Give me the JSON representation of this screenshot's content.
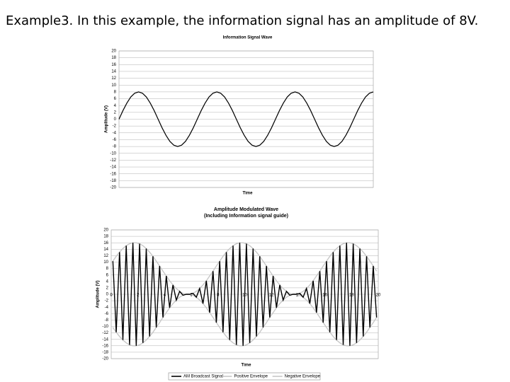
{
  "title": "Example3. In this example, the information signal has an amplitude of 8V.",
  "chart_data": [
    {
      "type": "line",
      "title": "Information Signal Wave",
      "x_label": "Time",
      "y_label": "Amplitude (V)",
      "color": "#000000",
      "grid": true,
      "values": [
        0,
        2.5,
        4.7,
        6.5,
        7.6,
        8,
        7.6,
        6.5,
        4.7,
        2.5,
        0,
        -2.5,
        -4.7,
        -6.5,
        -7.6,
        -8,
        -7.6,
        -6.5,
        -4.7,
        -2.5,
        0,
        2.5,
        4.7,
        6.5,
        7.6,
        8,
        7.6,
        6.5,
        4.7,
        2.5,
        0,
        -2.5,
        -4.7,
        -6.5,
        -7.6,
        -8,
        -7.6,
        -6.5,
        -4.7,
        -2.5,
        0,
        2.5,
        4.7,
        6.5,
        7.6,
        8,
        7.6,
        6.5,
        4.7,
        2.5,
        0,
        -2.5,
        -4.7,
        -6.5,
        -7.6,
        -8,
        -7.6,
        -6.5,
        -4.7,
        -2.5,
        0,
        2.5,
        4.7,
        6.5,
        7.6,
        8
      ],
      "ylim": [
        -20,
        20
      ],
      "yticks": [
        -20,
        -18,
        -16,
        -14,
        -12,
        -10,
        -8,
        -6,
        -4,
        -2,
        0,
        2,
        4,
        6,
        8,
        10,
        12,
        14,
        16,
        18,
        20
      ]
    },
    {
      "type": "line",
      "title": "Amplitude Modulated Wave",
      "subtitle": "(Including Information signal guide)",
      "x_label": "Time",
      "y_label": "Amplitude (V)",
      "grid": true,
      "legend": "bottom",
      "x": [
        0.125,
        0.375,
        0.625,
        0.875,
        1.125,
        1.375,
        1.625,
        1.875,
        2.125,
        2.375,
        2.625,
        2.875,
        3.125,
        3.375,
        3.625,
        3.875,
        4.125,
        4.375,
        4.625,
        4.875,
        5.125,
        5.375,
        5.625,
        5.875,
        6.125,
        6.375,
        6.625,
        6.875,
        7.125,
        7.375,
        7.625,
        7.875,
        8.125,
        8.375,
        8.625,
        8.875,
        9.125,
        9.375,
        9.625,
        9.875,
        10.125,
        10.375,
        10.625,
        10.875,
        11.125,
        11.375,
        11.625,
        11.875,
        12.125,
        12.375,
        12.625,
        12.875,
        13.125,
        13.375,
        13.625,
        13.875,
        14.125,
        14.375,
        14.625,
        14.875,
        15.125,
        15.375,
        15.625,
        15.875,
        16.125,
        16.375,
        16.625,
        16.875,
        17.125,
        17.375,
        17.625,
        17.875,
        18.125,
        18.375,
        18.625,
        18.875,
        19.125,
        19.375,
        19.625,
        19.875
      ],
      "series": [
        {
          "name": "AM Broadcast Signal",
          "color": "#000000",
          "values": [
            10.3,
            -11.8,
            13.1,
            -14.2,
            15.1,
            -15.7,
            16,
            -16,
            15.7,
            -15.1,
            14.2,
            -13.1,
            11.8,
            -10.3,
            8.8,
            -7.2,
            5.7,
            -4.2,
            2.9,
            -1.8,
            0.9,
            -0.3,
            0,
            0,
            0.3,
            -0.9,
            1.8,
            -2.9,
            4.2,
            -5.7,
            7.2,
            -8.8,
            10.3,
            -11.8,
            13.1,
            -14.2,
            15.1,
            -15.7,
            16,
            -16,
            15.7,
            -15.1,
            14.2,
            -13.1,
            11.8,
            -10.3,
            8.8,
            -7.2,
            5.7,
            -4.2,
            2.9,
            -1.8,
            0.9,
            -0.3,
            0,
            0,
            0.3,
            -0.9,
            1.8,
            -2.9,
            4.2,
            -5.7,
            7.2,
            -8.8,
            10.3,
            -11.8,
            13.1,
            -14.2,
            15.1,
            -15.7,
            16,
            -16,
            15.7,
            -15.1,
            14.2,
            -13.1,
            11.8,
            -10.3,
            8.8,
            -7.2
          ]
        },
        {
          "name": "Positive Envelope",
          "color": "#c8c8c8",
          "values": [
            10.3,
            11.8,
            13.1,
            14.2,
            15.1,
            15.7,
            16,
            16,
            15.7,
            15.1,
            14.2,
            13.1,
            11.8,
            10.3,
            8.8,
            7.2,
            5.7,
            4.2,
            2.9,
            1.8,
            0.9,
            0.3,
            0,
            0,
            0.3,
            0.9,
            1.8,
            2.9,
            4.2,
            5.7,
            7.2,
            8.8,
            10.3,
            11.8,
            13.1,
            14.2,
            15.1,
            15.7,
            16,
            16,
            15.7,
            15.1,
            14.2,
            13.1,
            11.8,
            10.3,
            8.8,
            7.2,
            5.7,
            4.2,
            2.9,
            1.8,
            0.9,
            0.3,
            0,
            0,
            0.3,
            0.9,
            1.8,
            2.9,
            4.2,
            5.7,
            7.2,
            8.8,
            10.3,
            11.8,
            13.1,
            14.2,
            15.1,
            15.7,
            16,
            16,
            15.7,
            15.1,
            14.2,
            13.1,
            11.8,
            10.3,
            8.8,
            7.2
          ]
        },
        {
          "name": "Negative Envelope",
          "color": "#c8c8c8",
          "values": [
            -10.3,
            -11.8,
            -13.1,
            -14.2,
            -15.1,
            -15.7,
            -16,
            -16,
            -15.7,
            -15.1,
            -14.2,
            -13.1,
            -11.8,
            -10.3,
            -8.8,
            -7.2,
            -5.7,
            -4.2,
            -2.9,
            -1.8,
            -0.9,
            -0.3,
            0,
            0,
            -0.3,
            -0.9,
            -1.8,
            -2.9,
            -4.2,
            -5.7,
            -7.2,
            -8.8,
            -10.3,
            -11.8,
            -13.1,
            -14.2,
            -15.1,
            -15.7,
            -16,
            -16,
            -15.7,
            -15.1,
            -14.2,
            -13.1,
            -11.8,
            -10.3,
            -8.8,
            -7.2,
            -5.7,
            -4.2,
            -2.9,
            -1.8,
            -0.9,
            -0.3,
            0,
            0,
            -0.3,
            -0.9,
            -1.8,
            -2.9,
            -4.2,
            -5.7,
            -7.2,
            -8.8,
            -10.3,
            -11.8,
            -13.1,
            -14.2,
            -15.1,
            -15.7,
            -16,
            -16,
            -15.7,
            -15.1,
            -14.2,
            -13.1,
            -11.8,
            -10.3,
            -8.8,
            -7.2
          ]
        }
      ],
      "xlim": [
        0,
        20
      ],
      "xticks": [
        0,
        2,
        4,
        6,
        8,
        10,
        12,
        14,
        16,
        18,
        20
      ],
      "ylim": [
        -20,
        20
      ],
      "yticks": [
        -20,
        -18,
        -16,
        -14,
        -12,
        -10,
        -8,
        -6,
        -4,
        -2,
        0,
        2,
        4,
        6,
        8,
        10,
        12,
        14,
        16,
        18,
        20
      ]
    }
  ]
}
